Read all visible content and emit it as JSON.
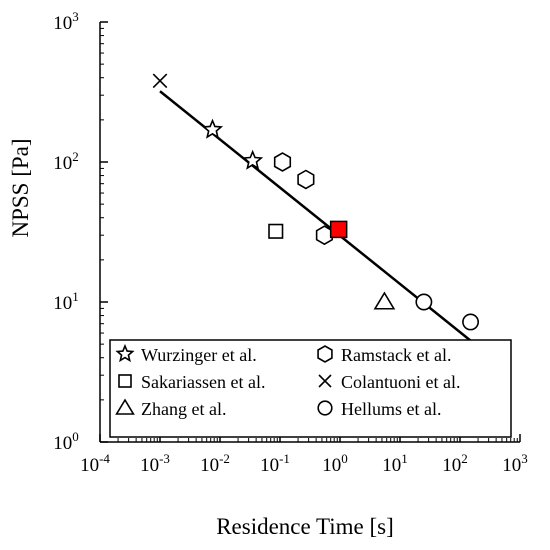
{
  "chart_data": {
    "type": "scatter",
    "xlabel": "Residence Time [s]",
    "ylabel": "NPSS [Pa]",
    "xscale": "log",
    "yscale": "log",
    "xlim": [
      0.0001,
      1000
    ],
    "ylim": [
      1,
      1000
    ],
    "x_ticks": [
      {
        "base": "10",
        "exp": "-4"
      },
      {
        "base": "10",
        "exp": "-3"
      },
      {
        "base": "10",
        "exp": "-2"
      },
      {
        "base": "10",
        "exp": "-1"
      },
      {
        "base": "10",
        "exp": "0"
      },
      {
        "base": "10",
        "exp": "1"
      },
      {
        "base": "10",
        "exp": "2"
      },
      {
        "base": "10",
        "exp": "3"
      }
    ],
    "y_ticks": [
      {
        "base": "10",
        "exp": "0"
      },
      {
        "base": "10",
        "exp": "1"
      },
      {
        "base": "10",
        "exp": "2"
      },
      {
        "base": "10",
        "exp": "3"
      }
    ],
    "grid": false,
    "legend_position": "bottom-inside",
    "series": [
      {
        "name": "Wurzinger et al.",
        "marker": "star",
        "points": [
          [
            0.0075,
            170
          ],
          [
            0.035,
            102
          ]
        ]
      },
      {
        "name": "Ramstack et al.",
        "marker": "hexagon",
        "points": [
          [
            0.11,
            100
          ],
          [
            0.27,
            75
          ],
          [
            0.55,
            30
          ]
        ]
      },
      {
        "name": "Sakariassen et al.",
        "marker": "square",
        "points": [
          [
            0.085,
            32
          ]
        ]
      },
      {
        "name": "Colantuoni et al.",
        "marker": "x",
        "points": [
          [
            0.001,
            380
          ]
        ]
      },
      {
        "name": "Zhang et al.",
        "marker": "triangle",
        "points": [
          [
            5.5,
            10
          ]
        ]
      },
      {
        "name": "Hellums et al.",
        "marker": "circle",
        "points": [
          [
            25,
            10
          ],
          [
            150,
            7.2
          ]
        ]
      }
    ],
    "highlight_point": {
      "x": 0.95,
      "y": 33,
      "color": "#ff0000"
    },
    "fit_line": {
      "x": [
        0.001,
        150
      ],
      "y": [
        320,
        5.3
      ]
    }
  }
}
